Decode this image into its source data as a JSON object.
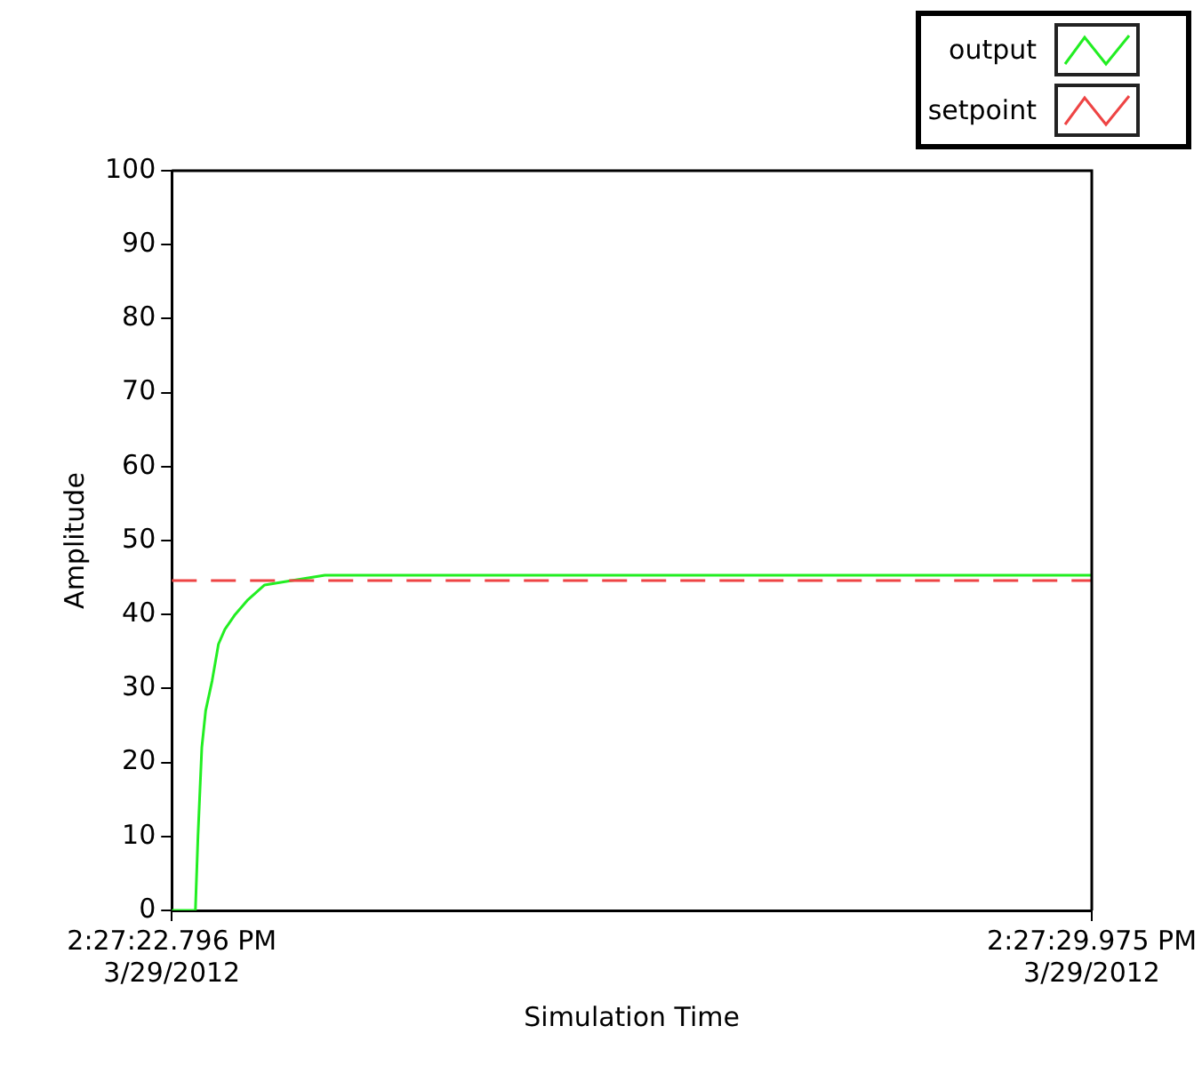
{
  "chart_data": {
    "type": "line",
    "xlabel": "Simulation Time",
    "ylabel": "Amplitude",
    "xlim": [
      "2012-03-29T14:27:22.796",
      "2012-03-29T14:27:29.975"
    ],
    "xticks": [
      {
        "value": "2012-03-29T14:27:22.796",
        "label": "2:27:22.796 PM\n3/29/2012"
      },
      {
        "value": "2012-03-29T14:27:29.975",
        "label": "2:27:29.975 PM\n3/29/2012"
      }
    ],
    "ylim": [
      0,
      100
    ],
    "yticks": [
      0,
      10,
      20,
      30,
      40,
      50,
      60,
      70,
      80,
      90,
      100
    ],
    "grid": false,
    "legend": "top right",
    "marker": "none",
    "series": [
      {
        "name": "output",
        "color": "#22ee22",
        "line_style": "solid",
        "x": [
          "2012-03-29T14:27:22.796",
          "2012-03-29T14:27:22.98",
          "2012-03-29T14:27:23.00",
          "2012-03-29T14:27:23.03",
          "2012-03-29T14:27:23.06",
          "2012-03-29T14:27:23.11",
          "2012-03-29T14:27:23.16",
          "2012-03-29T14:27:23.21",
          "2012-03-29T14:27:23.29",
          "2012-03-29T14:27:23.39",
          "2012-03-29T14:27:23.52",
          "2012-03-29T14:27:23.70",
          "2012-03-29T14:27:23.99",
          "2012-03-29T14:27:29.975"
        ],
        "values": [
          0,
          0,
          10,
          22,
          27,
          31,
          36,
          38,
          40,
          42,
          44,
          44.5,
          45.3,
          45.3
        ]
      },
      {
        "name": "setpoint",
        "color": "#ee4444",
        "line_style": "dashed",
        "x": [
          "2012-03-29T14:27:22.796",
          "2012-03-29T14:27:29.975"
        ],
        "values": [
          44.6,
          44.6
        ]
      }
    ]
  }
}
